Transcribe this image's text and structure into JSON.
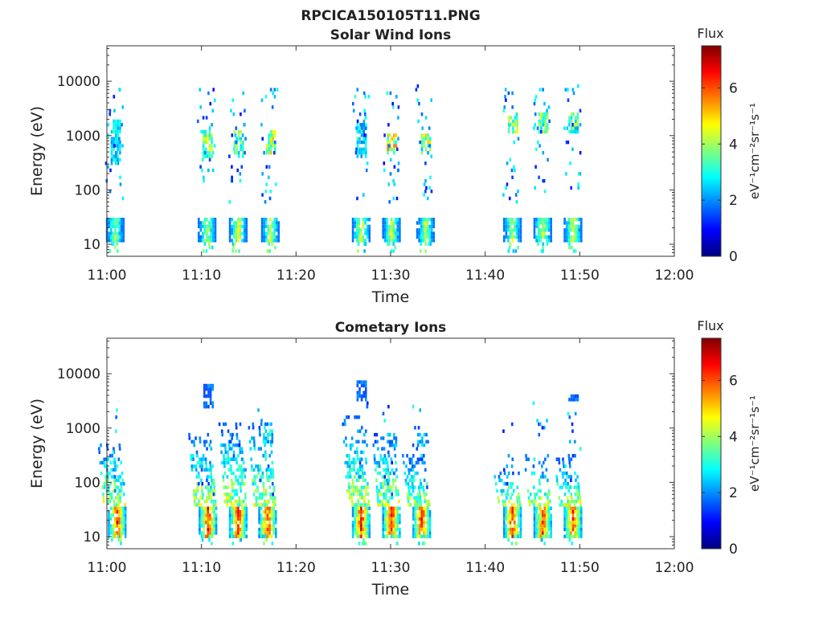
{
  "figure": {
    "filename": "RPCICA150105T11.PNG"
  },
  "colormap": {
    "name": "jet",
    "stops": [
      "#00007f",
      "#0000ff",
      "#007fff",
      "#00ffff",
      "#7fff7f",
      "#ffff00",
      "#ff7f00",
      "#ff0000",
      "#7f0000"
    ]
  },
  "chart_data": [
    {
      "type": "heatmap",
      "title": "Solar Wind Ions",
      "xlabel": "Time",
      "ylabel": "Energy (eV)",
      "x_ticks": [
        "11:00",
        "11:10",
        "11:20",
        "11:30",
        "11:40",
        "11:50",
        "12:00"
      ],
      "x_range_minutes": [
        0,
        60
      ],
      "y_scale": "log",
      "y_ticks": [
        "10",
        "100",
        "1000",
        "10000"
      ],
      "y_range": [
        6,
        45000
      ],
      "colorbar": {
        "title": "Flux",
        "label": "eV⁻¹cm⁻²sr⁻¹s⁻¹",
        "ticks": [
          "0",
          "2",
          "4",
          "6"
        ],
        "range": [
          0,
          7.5
        ]
      },
      "bursts": [
        {
          "t": 0.8,
          "low": 4.3,
          "ee": [
            12,
            28
          ],
          "hi": 3.0,
          "he": [
            300,
            1800
          ]
        },
        {
          "t": 10.5,
          "low": 4.6,
          "ee": [
            12,
            30
          ],
          "hi": 4.4,
          "he": [
            400,
            1100
          ]
        },
        {
          "t": 13.8,
          "low": 4.8,
          "ee": [
            12,
            30
          ],
          "hi": 4.0,
          "he": [
            400,
            1100
          ]
        },
        {
          "t": 17.2,
          "low": 4.6,
          "ee": [
            12,
            28
          ],
          "hi": 4.8,
          "he": [
            450,
            1200
          ]
        },
        {
          "t": 26.8,
          "low": 5.0,
          "ee": [
            12,
            30
          ],
          "hi": 3.0,
          "he": [
            400,
            1500
          ]
        },
        {
          "t": 30.0,
          "low": 4.8,
          "ee": [
            12,
            30
          ],
          "hi": 5.2,
          "he": [
            450,
            1000
          ]
        },
        {
          "t": 33.6,
          "low": 4.5,
          "ee": [
            12,
            30
          ],
          "hi": 4.6,
          "he": [
            450,
            1000
          ]
        },
        {
          "t": 42.8,
          "low": 4.5,
          "ee": [
            12,
            28
          ],
          "hi": 4.2,
          "he": [
            1200,
            2500
          ]
        },
        {
          "t": 46.0,
          "low": 4.8,
          "ee": [
            12,
            30
          ],
          "hi": 4.0,
          "he": [
            1200,
            2500
          ]
        },
        {
          "t": 49.2,
          "low": 4.7,
          "ee": [
            12,
            30
          ],
          "hi": 4.0,
          "he": [
            1200,
            2500
          ]
        }
      ]
    },
    {
      "type": "heatmap",
      "title": "Cometary Ions",
      "xlabel": "Time",
      "ylabel": "Energy (eV)",
      "x_ticks": [
        "11:00",
        "11:10",
        "11:20",
        "11:30",
        "11:40",
        "11:50",
        "12:00"
      ],
      "x_range_minutes": [
        0,
        60
      ],
      "y_scale": "log",
      "y_ticks": [
        "10",
        "100",
        "1000",
        "10000"
      ],
      "y_range": [
        6,
        45000
      ],
      "colorbar": {
        "title": "Flux",
        "label": "eV⁻¹cm⁻²sr⁻¹s⁻¹",
        "ticks": [
          "0",
          "2",
          "4",
          "6"
        ],
        "range": [
          0,
          7.5
        ]
      },
      "bursts": [
        {
          "t": 1.0,
          "low": 6.8,
          "ee": [
            10,
            35
          ],
          "tail": [
            40,
            600
          ],
          "hi": 0,
          "he": [
            0,
            0
          ]
        },
        {
          "t": 10.6,
          "low": 6.8,
          "ee": [
            10,
            35
          ],
          "tail": [
            40,
            700
          ],
          "hi": 2.0,
          "he": [
            2500,
            6000
          ]
        },
        {
          "t": 13.8,
          "low": 6.9,
          "ee": [
            10,
            35
          ],
          "tail": [
            40,
            1200
          ],
          "hi": 0,
          "he": [
            0,
            0
          ]
        },
        {
          "t": 16.9,
          "low": 6.7,
          "ee": [
            10,
            35
          ],
          "tail": [
            40,
            1200
          ],
          "hi": 3.0,
          "he": [
            600,
            900
          ]
        },
        {
          "t": 26.8,
          "low": 7.0,
          "ee": [
            10,
            35
          ],
          "tail": [
            40,
            1500
          ],
          "hi": 2.0,
          "he": [
            3500,
            7000
          ]
        },
        {
          "t": 30.0,
          "low": 6.9,
          "ee": [
            10,
            35
          ],
          "tail": [
            40,
            700
          ],
          "hi": 2.5,
          "he": [
            500,
            700
          ]
        },
        {
          "t": 33.2,
          "low": 6.8,
          "ee": [
            10,
            35
          ],
          "tail": [
            40,
            300
          ],
          "hi": 2.5,
          "he": [
            500,
            700
          ]
        },
        {
          "t": 42.8,
          "low": 6.8,
          "ee": [
            10,
            35
          ],
          "tail": [
            40,
            180
          ],
          "hi": 0,
          "he": [
            0,
            0
          ]
        },
        {
          "t": 46.0,
          "low": 6.7,
          "ee": [
            10,
            35
          ],
          "tail": [
            40,
            300
          ],
          "hi": 0,
          "he": [
            0,
            0
          ]
        },
        {
          "t": 49.2,
          "low": 6.7,
          "ee": [
            10,
            35
          ],
          "tail": [
            40,
            300
          ],
          "hi": 2.0,
          "he": [
            3500,
            3800
          ]
        }
      ]
    }
  ]
}
